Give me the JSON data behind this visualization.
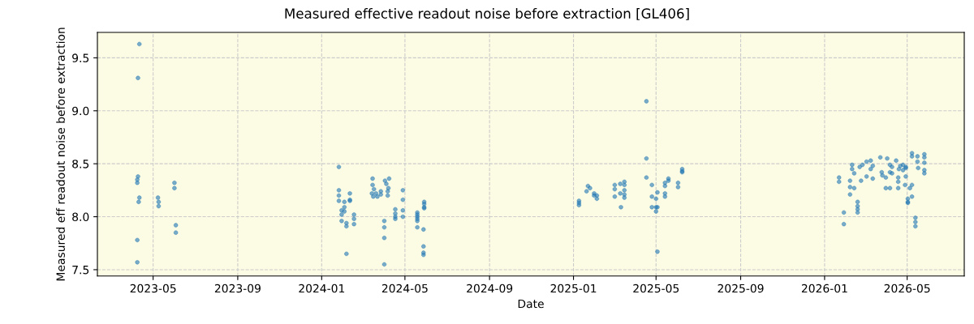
{
  "chart_data": {
    "type": "scatter",
    "title": "Measured effective readout noise before extraction [GL406]",
    "xlabel": "Date",
    "ylabel": "Measured eff readout noise before extraction",
    "series": [
      {
        "color": "#1f77b4",
        "x": [
          "2023-04-11",
          "2023-04-09",
          "2023-04-09",
          "2023-04-08",
          "2023-04-08",
          "2023-04-11",
          "2023-04-10",
          "2023-04-08",
          "2023-04-08",
          "2023-05-08",
          "2023-05-09",
          "2023-05-09",
          "2023-06-01",
          "2023-06-01",
          "2023-06-03",
          "2023-06-03",
          "2024-01-26",
          "2024-01-26",
          "2024-01-26",
          "2024-01-26",
          "2024-01-30",
          "2024-01-30",
          "2024-01-30",
          "2024-02-03",
          "2024-02-03",
          "2024-02-03",
          "2024-02-06",
          "2024-02-06",
          "2024-02-06",
          "2024-02-11",
          "2024-02-11",
          "2024-02-11",
          "2024-02-17",
          "2024-02-17",
          "2024-02-17",
          "2024-03-15",
          "2024-03-15",
          "2024-03-17",
          "2024-03-14",
          "2024-03-20",
          "2024-03-22",
          "2024-03-16",
          "2024-03-27",
          "2024-03-27",
          "2024-04-02",
          "2024-04-08",
          "2024-04-04",
          "2024-04-07",
          "2024-04-06",
          "2024-04-06",
          "2024-04-01",
          "2024-04-01",
          "2024-04-01",
          "2024-04-01",
          "2024-04-17",
          "2024-04-17",
          "2024-04-17",
          "2024-04-17",
          "2024-04-28",
          "2024-04-28",
          "2024-04-28",
          "2024-04-28",
          "2024-05-19",
          "2024-05-19",
          "2024-05-19",
          "2024-05-19",
          "2024-05-19",
          "2024-05-19",
          "2024-05-29",
          "2024-05-29",
          "2024-05-29",
          "2024-05-29",
          "2024-05-28",
          "2024-05-28",
          "2024-05-28",
          "2024-05-28",
          "2025-01-09",
          "2025-01-09",
          "2025-01-09",
          "2025-01-22",
          "2025-01-20",
          "2025-01-25",
          "2025-01-31",
          "2025-01-31",
          "2025-02-04",
          "2025-02-04",
          "2025-03-02",
          "2025-03-02",
          "2025-03-02",
          "2025-03-10",
          "2025-03-10",
          "2025-03-11",
          "2025-03-16",
          "2025-03-16",
          "2025-03-16",
          "2025-03-16",
          "2025-03-16",
          "2025-04-17",
          "2025-04-17",
          "2025-04-17",
          "2025-04-25",
          "2025-04-25",
          "2025-04-25",
          "2025-05-01",
          "2025-05-01",
          "2025-05-01",
          "2025-05-03",
          "2025-05-03",
          "2025-05-03",
          "2025-05-14",
          "2025-05-14",
          "2025-05-14",
          "2025-05-14",
          "2025-05-19",
          "2025-05-19",
          "2025-06-02",
          "2025-06-02",
          "2025-06-08",
          "2025-06-08",
          "2025-06-08",
          "2026-01-22",
          "2026-01-22",
          "2026-01-29",
          "2026-01-29",
          "2026-02-07",
          "2026-02-07",
          "2026-02-07",
          "2026-02-10",
          "2026-02-10",
          "2026-02-13",
          "2026-02-13",
          "2026-02-18",
          "2026-02-18",
          "2026-02-18",
          "2026-02-18",
          "2026-02-21",
          "2026-02-23",
          "2026-02-25",
          "2026-03-03",
          "2026-03-03",
          "2026-03-09",
          "2026-03-09",
          "2026-03-12",
          "2026-03-12",
          "2026-03-23",
          "2026-03-25",
          "2026-03-26",
          "2026-03-31",
          "2026-03-31",
          "2026-04-02",
          "2026-04-06",
          "2026-04-06",
          "2026-04-06",
          "2026-04-09",
          "2026-04-09",
          "2026-04-15",
          "2026-04-18",
          "2026-04-18",
          "2026-04-18",
          "2026-04-19",
          "2026-04-21",
          "2026-04-25",
          "2026-04-25",
          "2026-04-29",
          "2026-04-29",
          "2026-04-29",
          "2026-04-28",
          "2026-05-02",
          "2026-05-02",
          "2026-05-02",
          "2026-05-05",
          "2026-05-08",
          "2026-05-08",
          "2026-05-08",
          "2026-05-08",
          "2026-05-13",
          "2026-05-13",
          "2026-05-13",
          "2026-05-16",
          "2026-05-16",
          "2026-05-17",
          "2026-05-26",
          "2026-05-26",
          "2026-05-26",
          "2026-05-26",
          "2026-05-26"
        ],
        "values": [
          9.63,
          9.31,
          8.38,
          8.35,
          8.32,
          8.18,
          8.14,
          7.78,
          7.57,
          8.18,
          8.14,
          8.1,
          8.32,
          8.27,
          7.92,
          7.85,
          8.47,
          8.25,
          8.2,
          8.15,
          8.06,
          8.02,
          7.96,
          8.14,
          8.09,
          8.05,
          7.94,
          7.91,
          7.65,
          8.22,
          8.16,
          8.15,
          8.02,
          7.98,
          7.93,
          8.36,
          8.3,
          8.26,
          8.22,
          8.22,
          8.19,
          8.19,
          8.24,
          8.21,
          8.34,
          8.36,
          8.31,
          8.27,
          8.24,
          8.2,
          7.96,
          7.9,
          7.8,
          7.55,
          8.07,
          8.03,
          8.0,
          7.98,
          8.25,
          8.16,
          8.06,
          8.0,
          8.04,
          8.02,
          8.0,
          7.98,
          7.96,
          7.9,
          8.14,
          8.12,
          8.09,
          8.08,
          7.88,
          7.72,
          7.66,
          7.64,
          8.15,
          8.13,
          8.11,
          8.29,
          8.24,
          8.27,
          8.22,
          8.2,
          8.2,
          8.17,
          8.26,
          8.3,
          8.19,
          8.31,
          8.22,
          8.09,
          8.33,
          8.3,
          8.25,
          8.21,
          8.18,
          9.09,
          8.55,
          8.37,
          8.3,
          8.19,
          8.09,
          8.17,
          8.05,
          8.09,
          8.23,
          8.09,
          7.67,
          8.32,
          8.29,
          8.22,
          8.19,
          8.36,
          8.34,
          8.32,
          8.28,
          8.45,
          8.42,
          8.43,
          8.37,
          8.33,
          8.04,
          7.93,
          8.34,
          8.28,
          8.21,
          8.49,
          8.45,
          8.41,
          8.27,
          8.14,
          8.1,
          8.07,
          8.04,
          8.47,
          8.34,
          8.49,
          8.52,
          8.38,
          8.53,
          8.45,
          8.36,
          8.48,
          8.56,
          8.42,
          8.39,
          8.37,
          8.27,
          8.55,
          8.49,
          8.42,
          8.27,
          8.47,
          8.41,
          8.53,
          8.37,
          8.33,
          8.27,
          8.45,
          8.48,
          8.49,
          8.44,
          8.47,
          8.46,
          8.38,
          8.3,
          8.14,
          8.17,
          8.13,
          8.27,
          8.3,
          8.19,
          8.6,
          8.57,
          7.99,
          7.95,
          7.91,
          8.57,
          8.52,
          8.46,
          8.59,
          8.56,
          8.51,
          8.44,
          8.41
        ]
      }
    ],
    "xlim": [
      "2023-02-09",
      "2026-07-23"
    ],
    "ylim": [
      7.44,
      9.74
    ],
    "xticks": [
      {
        "value": "2023-05-01",
        "label": "2023-05"
      },
      {
        "value": "2023-09-01",
        "label": "2023-09"
      },
      {
        "value": "2024-01-01",
        "label": "2024-01"
      },
      {
        "value": "2024-05-01",
        "label": "2024-05"
      },
      {
        "value": "2024-09-01",
        "label": "2024-09"
      },
      {
        "value": "2025-01-01",
        "label": "2025-01"
      },
      {
        "value": "2025-05-01",
        "label": "2025-05"
      },
      {
        "value": "2025-09-01",
        "label": "2025-09"
      },
      {
        "value": "2026-01-01",
        "label": "2026-01"
      },
      {
        "value": "2026-05-01",
        "label": "2026-05"
      }
    ],
    "yticks": [
      {
        "value": 7.5,
        "label": "7.5"
      },
      {
        "value": 8.0,
        "label": "8.0"
      },
      {
        "value": 8.5,
        "label": "8.5"
      },
      {
        "value": 9.0,
        "label": "9.0"
      },
      {
        "value": 9.5,
        "label": "9.5"
      }
    ],
    "grid": true,
    "marker": "circle"
  }
}
